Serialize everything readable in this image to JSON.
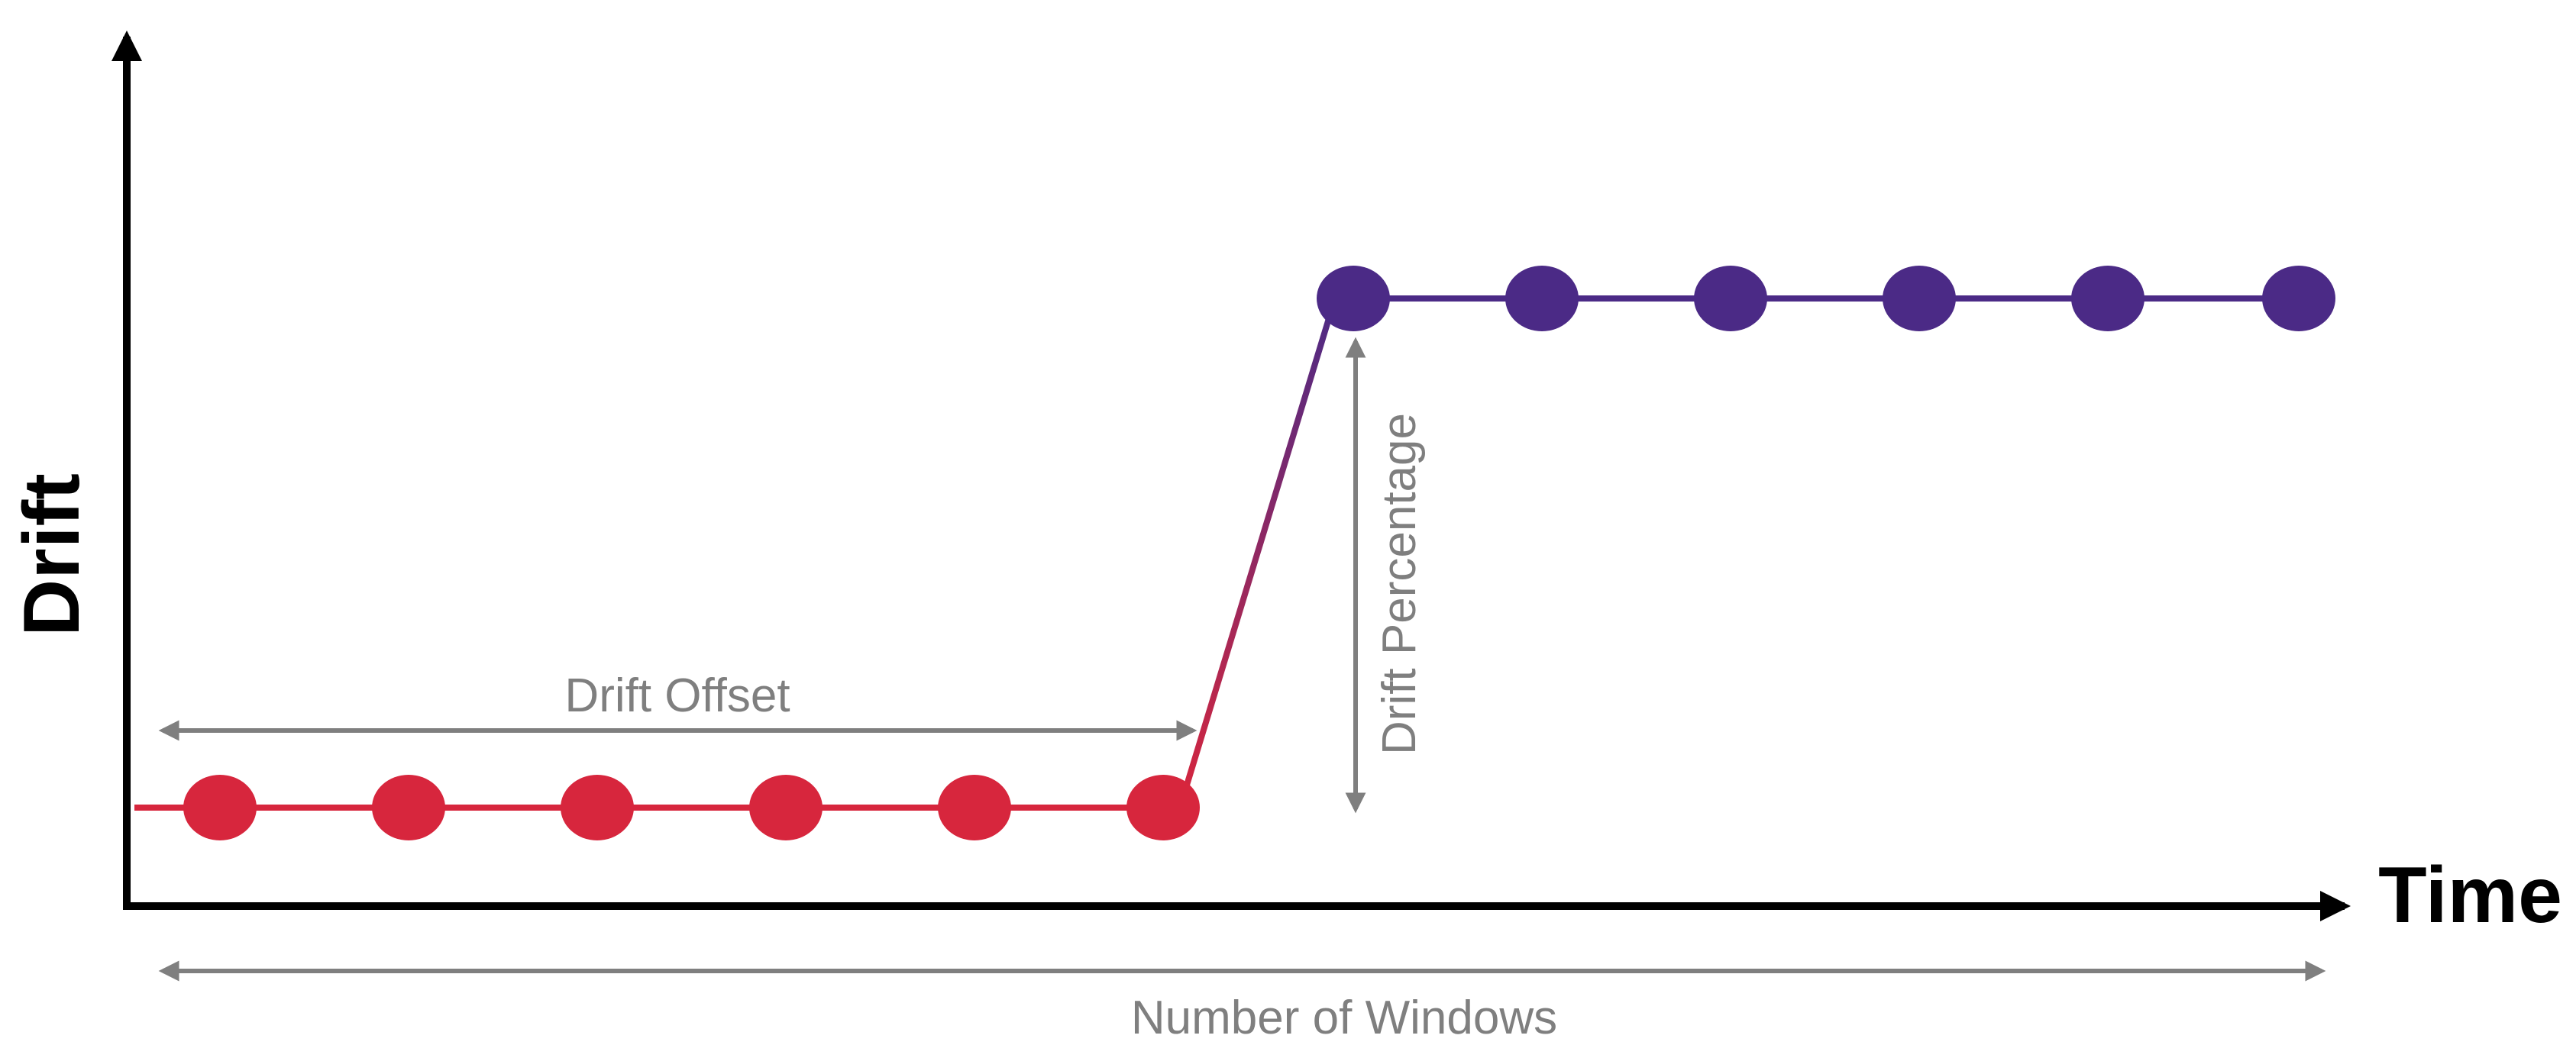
{
  "diagram": {
    "y_axis_label": "Drift",
    "x_axis_label": "Time",
    "annotations": {
      "drift_offset": "Drift Offset",
      "drift_percentage": "Drift Percentage",
      "number_of_windows": "Number of Windows"
    },
    "series": [
      {
        "name": "",
        "color": "#d7263d",
        "points": 6
      },
      {
        "name": "",
        "color": "#4b2a86",
        "points": 6
      }
    ],
    "colors": {
      "axis": "#000000",
      "annotation": "#7f7f7f",
      "before_drift": "#d7263d",
      "after_drift": "#4b2a86"
    }
  }
}
